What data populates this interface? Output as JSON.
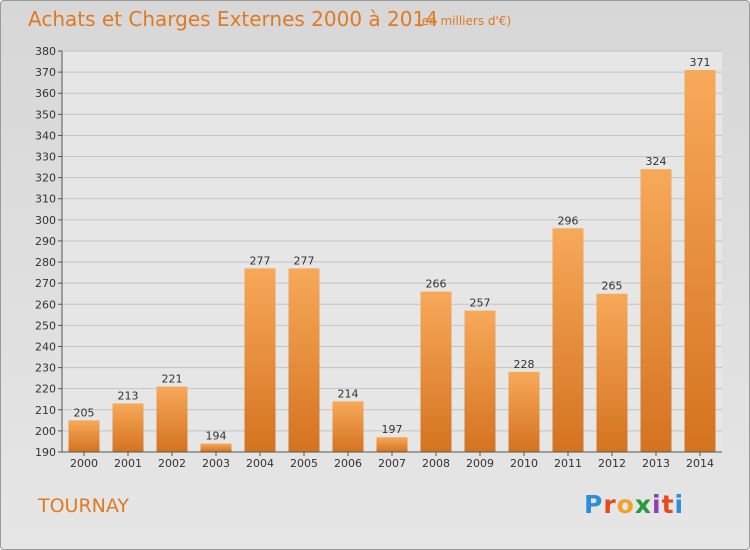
{
  "title": "Achats et Charges Externes 2000 à 2014",
  "unit": "(en milliers d'€)",
  "commune": "TOURNAY",
  "logo": {
    "text": "Proxiti",
    "colors": [
      "#2a8fd8",
      "#e8481c",
      "#f0a22a",
      "#2a9a3a",
      "#8a3fb8",
      "#e8481c",
      "#2a8fd8"
    ]
  },
  "colors": {
    "bar_light": "#f7a95a",
    "bar_dark": "#d4731f",
    "text_accent": "#e07a22"
  },
  "chart_data": {
    "type": "bar",
    "categories": [
      "2000",
      "2001",
      "2002",
      "2003",
      "2004",
      "2005",
      "2006",
      "2007",
      "2008",
      "2009",
      "2010",
      "2011",
      "2012",
      "2013",
      "2014"
    ],
    "values": [
      205,
      213,
      221,
      194,
      277,
      277,
      214,
      197,
      266,
      257,
      228,
      296,
      265,
      324,
      371
    ],
    "title": "Achats et Charges Externes 2000 à 2014",
    "ylim": [
      190,
      380
    ],
    "yticks": [
      190,
      200,
      210,
      220,
      230,
      240,
      250,
      260,
      270,
      280,
      290,
      300,
      310,
      320,
      330,
      340,
      350,
      360,
      370,
      380
    ],
    "grid": true
  }
}
